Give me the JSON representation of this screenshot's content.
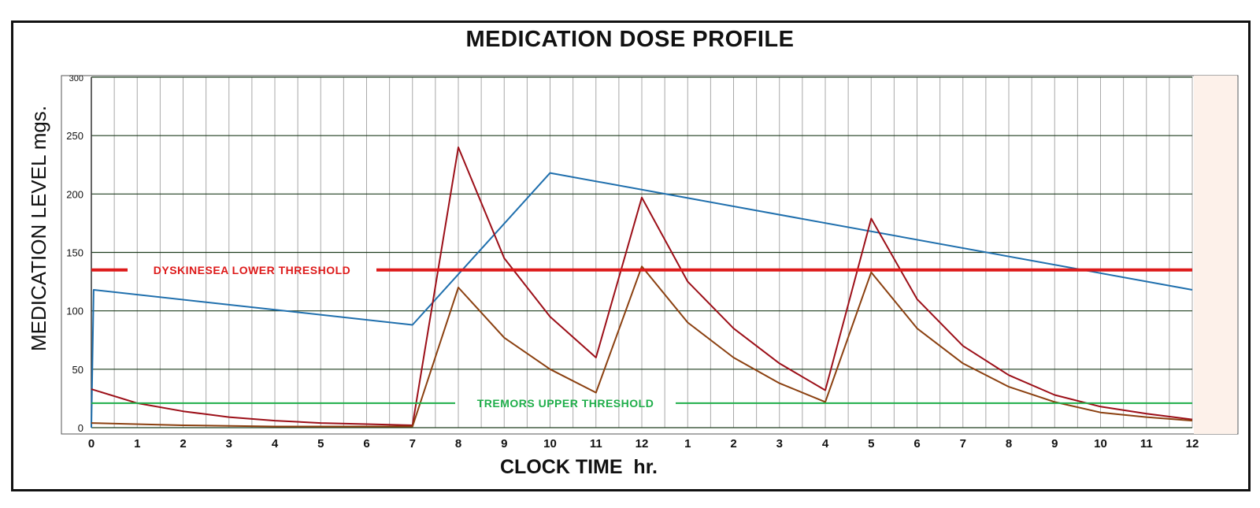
{
  "chart_data": {
    "type": "line",
    "title": "MEDICATION DOSE PROFILE",
    "xlabel": "CLOCK TIME  hr.",
    "ylabel": "MEDICATION LEVEL mgs.",
    "ylim": [
      0,
      300
    ],
    "xlim": [
      0,
      24
    ],
    "y_ticks": [
      0,
      50,
      100,
      150,
      200,
      250,
      300
    ],
    "x_tick_labels": [
      "0",
      "1",
      "2",
      "3",
      "4",
      "5",
      "6",
      "7",
      "8",
      "9",
      "10",
      "11",
      "12",
      "1",
      "2",
      "3",
      "4",
      "5",
      "6",
      "7",
      "8",
      "9",
      "10",
      "11",
      "12"
    ],
    "grid": true,
    "series": [
      {
        "color": "#1f6fad",
        "points": [
          [
            0,
            0
          ],
          [
            0.05,
            118
          ],
          [
            7,
            88
          ],
          [
            10,
            218
          ],
          [
            24,
            118
          ]
        ]
      },
      {
        "color": "#9c0f18",
        "points": [
          [
            0,
            33
          ],
          [
            1,
            21
          ],
          [
            2,
            14
          ],
          [
            3,
            9
          ],
          [
            4,
            6
          ],
          [
            5,
            4
          ],
          [
            6,
            3
          ],
          [
            7,
            2
          ],
          [
            8,
            240
          ],
          [
            9,
            145
          ],
          [
            10,
            95
          ],
          [
            11,
            60
          ],
          [
            12,
            197
          ],
          [
            13,
            125
          ],
          [
            14,
            85
          ],
          [
            15,
            55
          ],
          [
            16,
            32
          ],
          [
            17,
            179
          ],
          [
            18,
            110
          ],
          [
            19,
            70
          ],
          [
            20,
            45
          ],
          [
            21,
            28
          ],
          [
            22,
            18
          ],
          [
            23,
            12
          ],
          [
            24,
            7
          ]
        ]
      },
      {
        "color": "#8b4010",
        "points": [
          [
            0,
            4
          ],
          [
            2,
            2
          ],
          [
            4,
            1
          ],
          [
            7,
            1
          ],
          [
            8,
            120
          ],
          [
            9,
            77
          ],
          [
            10,
            50
          ],
          [
            11,
            30
          ],
          [
            12,
            138
          ],
          [
            13,
            90
          ],
          [
            14,
            60
          ],
          [
            15,
            38
          ],
          [
            16,
            22
          ],
          [
            17,
            133
          ],
          [
            18,
            85
          ],
          [
            19,
            55
          ],
          [
            20,
            35
          ],
          [
            21,
            22
          ],
          [
            22,
            13
          ],
          [
            23,
            9
          ],
          [
            24,
            6
          ]
        ]
      }
    ],
    "thresholds": [
      {
        "label": "DYSKINESEA LOWER THRESHOLD",
        "value": 135,
        "color": "#dd1a1a"
      },
      {
        "label": "TREMORS UPPER THRESHOLD",
        "value": 21,
        "color": "#1fae4a"
      }
    ],
    "plot_background": "#ffffff",
    "right_panel_color": "#fdf1ea",
    "grid_color_major": "#1e3d1e",
    "grid_color_minor": "#a8a8a8"
  }
}
